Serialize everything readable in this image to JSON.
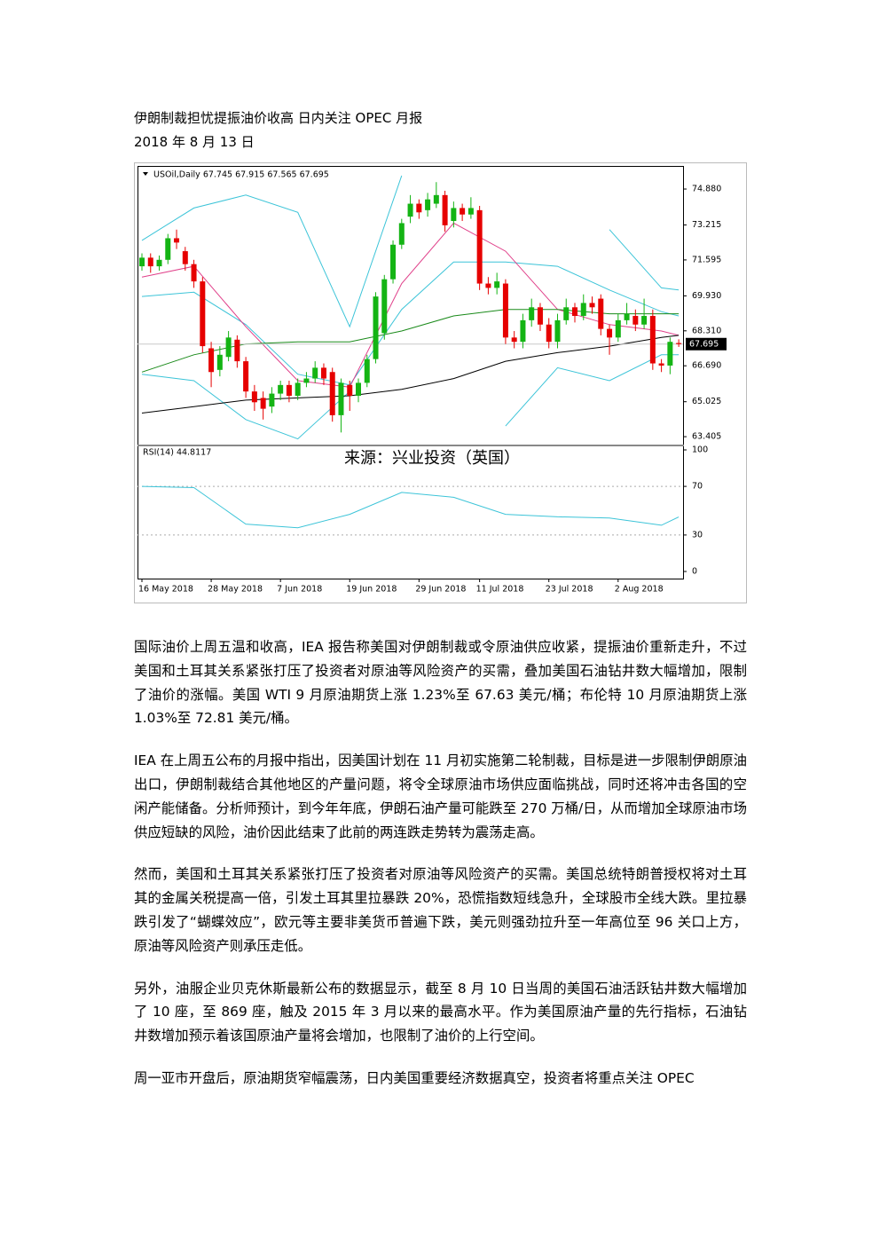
{
  "header": {
    "title": "伊朗制裁担忧提振油价收高 日内关注 OPEC 月报",
    "date": "2018 年 8 月 13 日"
  },
  "chart_data": {
    "type": "candlestick",
    "symbol_label": "USOil,Daily 67.745 67.915 67.565 67.695",
    "watermark": "来源：兴业投资（英国）",
    "categories": [
      "16 May 2018",
      null,
      null,
      null,
      null,
      null,
      null,
      null,
      "28 May 2018",
      null,
      null,
      null,
      null,
      null,
      null,
      null,
      "7 Jun 2018",
      null,
      null,
      null,
      null,
      null,
      null,
      null,
      "19 Jun 2018",
      null,
      null,
      null,
      null,
      null,
      null,
      null,
      "29 Jun 2018",
      null,
      null,
      null,
      null,
      null,
      null,
      "11 Jul 2018",
      null,
      null,
      null,
      null,
      null,
      null,
      null,
      "23 Jul 2018",
      null,
      null,
      null,
      null,
      null,
      null,
      null,
      "2 Aug 2018",
      null,
      null,
      null,
      null,
      null,
      null,
      null
    ],
    "open": [
      71.3,
      71.7,
      71.3,
      71.6,
      72.6,
      72.0,
      71.4,
      70.6,
      67.5,
      66.5,
      67.1,
      67.9,
      66.9,
      65.5,
      65.2,
      64.8,
      65.4,
      65.8,
      65.3,
      65.9,
      66.1,
      66.6,
      66.4,
      64.4,
      65.8,
      65.3,
      65.9,
      67.0,
      68.2,
      70.7,
      72.3,
      73.6,
      74.2,
      73.9,
      74.2,
      74.6,
      73.4,
      74.0,
      73.7,
      73.9,
      70.5,
      70.3,
      70.5,
      68.0,
      67.8,
      68.8,
      69.4,
      68.6,
      67.8,
      68.8,
      69.4,
      69.0,
      69.6,
      69.8,
      68.4,
      68.0,
      68.8,
      69.0,
      68.6,
      69.0,
      66.8,
      66.7,
      67.745
    ],
    "high": [
      71.9,
      71.9,
      71.8,
      72.8,
      73.0,
      72.2,
      71.6,
      70.8,
      67.8,
      67.6,
      68.3,
      68.1,
      67.1,
      65.8,
      65.5,
      65.7,
      66.0,
      66.0,
      66.1,
      66.4,
      66.9,
      66.8,
      66.6,
      66.1,
      66.0,
      66.1,
      67.2,
      70.1,
      70.9,
      72.5,
      73.5,
      74.6,
      74.4,
      74.7,
      75.2,
      74.8,
      74.3,
      74.2,
      74.5,
      74.1,
      70.8,
      71.0,
      70.7,
      68.3,
      69.1,
      69.8,
      69.6,
      68.9,
      69.1,
      69.8,
      69.6,
      70.0,
      69.9,
      70.0,
      68.6,
      69.1,
      69.6,
      69.3,
      69.8,
      69.3,
      67.0,
      68.0,
      67.915
    ],
    "low": [
      71.1,
      71.0,
      71.1,
      71.4,
      72.1,
      71.1,
      70.3,
      67.3,
      65.7,
      66.2,
      66.9,
      66.6,
      65.2,
      64.6,
      64.2,
      64.5,
      65.1,
      65.0,
      65.1,
      65.7,
      65.9,
      65.8,
      64.1,
      63.6,
      64.6,
      65.0,
      65.7,
      66.8,
      67.9,
      70.5,
      72.1,
      73.3,
      73.5,
      73.6,
      74.0,
      72.9,
      73.1,
      73.4,
      73.5,
      70.2,
      70.0,
      70.0,
      67.7,
      67.5,
      67.5,
      68.5,
      68.3,
      67.5,
      67.5,
      68.6,
      68.7,
      68.8,
      69.1,
      68.1,
      67.2,
      67.8,
      68.6,
      68.3,
      68.4,
      66.5,
      66.4,
      66.3,
      67.565
    ],
    "close": [
      71.7,
      71.3,
      71.6,
      72.6,
      72.4,
      71.4,
      70.6,
      67.6,
      66.4,
      67.2,
      68.0,
      66.9,
      65.5,
      65.0,
      64.7,
      65.4,
      65.8,
      65.3,
      65.9,
      66.1,
      66.6,
      66.1,
      64.4,
      65.9,
      65.3,
      65.9,
      67.0,
      69.9,
      70.7,
      72.3,
      73.3,
      74.2,
      73.8,
      74.4,
      74.6,
      73.2,
      74.0,
      73.7,
      74.0,
      70.5,
      70.3,
      70.6,
      68.0,
      67.8,
      68.8,
      69.4,
      68.6,
      67.8,
      68.8,
      69.4,
      69.0,
      69.6,
      69.4,
      68.4,
      68.0,
      68.8,
      69.1,
      68.6,
      69.0,
      66.8,
      66.7,
      67.8,
      67.695
    ],
    "up_color": "#14b414",
    "down_color": "#e60000",
    "ylim": [
      63.08,
      75.95
    ],
    "yticks": [
      {
        "value": 63.405,
        "label": "63.405"
      },
      {
        "value": 65.025,
        "label": "65.025"
      },
      {
        "value": 66.69,
        "label": "66.690"
      },
      {
        "value": 68.31,
        "label": "68.310"
      },
      {
        "value": 69.93,
        "label": "69.930"
      },
      {
        "value": 71.595,
        "label": "71.595"
      },
      {
        "value": 73.215,
        "label": "73.215"
      },
      {
        "value": 74.88,
        "label": "74.880"
      }
    ],
    "lines": [
      {
        "color": "#3cc4d8",
        "x": [
          0,
          6,
          12,
          18,
          24,
          30,
          36,
          42,
          48,
          54,
          60,
          62
        ],
        "values": [
          72.5,
          74.0,
          74.6,
          73.8,
          68.5,
          75.5,
          null,
          null,
          null,
          73.0,
          70.3,
          70.2
        ]
      },
      {
        "color": "#3cc4d8",
        "x": [
          0,
          6,
          12,
          18,
          24,
          30,
          36,
          42,
          48,
          54,
          60,
          62
        ],
        "values": [
          66.3,
          66.0,
          64.2,
          63.3,
          65.5,
          null,
          null,
          63.9,
          66.6,
          66.0,
          67.2,
          67.2
        ]
      },
      {
        "color": "#3cc4d8",
        "x": [
          0,
          6,
          12,
          18,
          24,
          30,
          36,
          42,
          48,
          54,
          60,
          62
        ],
        "values": [
          69.9,
          70.1,
          68.6,
          66.3,
          65.8,
          69.3,
          71.5,
          71.5,
          71.3,
          70.2,
          69.2,
          69.0
        ]
      },
      {
        "color": "#e0408a",
        "x": [
          0,
          6,
          12,
          18,
          24,
          30,
          36,
          42,
          48,
          54,
          60,
          62
        ],
        "values": [
          70.8,
          71.3,
          68.5,
          66.0,
          65.7,
          70.5,
          73.3,
          72.0,
          69.3,
          68.6,
          68.3,
          68.1
        ]
      },
      {
        "color": "#1a8a1a",
        "x": [
          0,
          6,
          12,
          18,
          24,
          30,
          36,
          42,
          48,
          54,
          60,
          62
        ],
        "values": [
          66.4,
          67.2,
          67.7,
          67.8,
          67.8,
          68.3,
          69.0,
          69.3,
          69.3,
          69.1,
          69.1,
          69.1
        ]
      },
      {
        "color": "#000000",
        "x": [
          0,
          6,
          12,
          18,
          24,
          30,
          36,
          42,
          48,
          54,
          60,
          62
        ],
        "values": [
          64.5,
          64.8,
          65.1,
          65.2,
          65.3,
          65.6,
          66.1,
          66.9,
          67.3,
          67.6,
          68.0,
          68.1
        ]
      }
    ],
    "rsi": {
      "label": "RSI(14) 44.8117",
      "ylim": [
        0,
        100
      ],
      "yticks": [
        0,
        30,
        70,
        100
      ],
      "color": "#3cc4d8",
      "x": [
        0,
        6,
        12,
        18,
        24,
        30,
        36,
        42,
        48,
        54,
        60,
        62
      ],
      "values": [
        70,
        69,
        39,
        36,
        47,
        65,
        61,
        47,
        45,
        44,
        38,
        44.8117
      ]
    }
  },
  "paragraphs": [
    "国际油价上周五温和收高，IEA 报告称美国对伊朗制裁或令原油供应收紧，提振油价重新走升，不过美国和土耳其关系紧张打压了投资者对原油等风险资产的买需，叠加美国石油钻井数大幅增加，限制了油价的涨幅。美国 WTI 9 月原油期货上涨 1.23%至 67.63 美元/桶；布伦特 10 月原油期货上涨 1.03%至 72.81 美元/桶。",
    "IEA 在上周五公布的月报中指出，因美国计划在 11 月初实施第二轮制裁，目标是进一步限制伊朗原油出口，伊朗制裁结合其他地区的产量问题，将令全球原油市场供应面临挑战，同时还将冲击各国的空闲产能储备。分析师预计，到今年年底，伊朗石油产量可能跌至 270 万桶/日，从而增加全球原油市场供应短缺的风险，油价因此结束了此前的两连跌走势转为震荡走高。",
    "然而，美国和土耳其关系紧张打压了投资者对原油等风险资产的买需。美国总统特朗普授权将对土耳其的金属关税提高一倍，引发土耳其里拉暴跌 20%，恐慌指数短线急升，全球股市全线大跌。里拉暴跌引发了“蝴蝶效应”，欧元等主要非美货币普遍下跌，美元则强劲拉升至一年高位至 96 关口上方，原油等风险资产则承压走低。",
    "另外，油服企业贝克休斯最新公布的数据显示，截至 8 月 10 日当周的美国石油活跃钻井数大幅增加了 10 座，至 869 座，触及 2015 年 3 月以来的最高水平。作为美国原油产量的先行指标，石油钻井数增加预示着该国原油产量将会增加，也限制了油价的上行空间。",
    "周一亚市开盘后，原油期货窄幅震荡，日内美国重要经济数据真空，投资者将重点关注 OPEC"
  ]
}
